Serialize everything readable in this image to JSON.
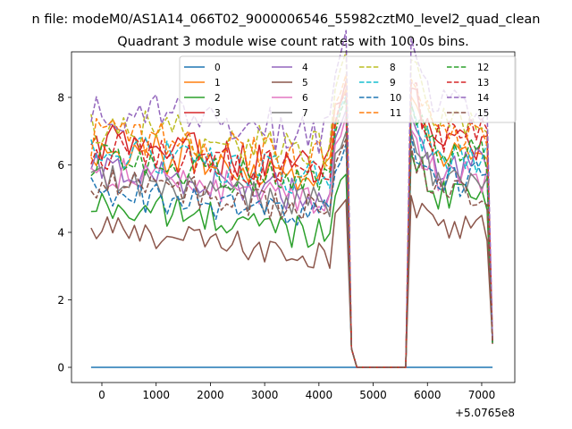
{
  "chart_data": {
    "type": "line",
    "suptitle": "n file: modeM0/AS1A14_066T02_9000006546_55982cztM0_level2_quad_clean",
    "title": "Quadrant 3 module wise count rates with 100.0s bins.",
    "xlabel": "",
    "ylabel": "",
    "x_offset_label": "+5.0765e8",
    "xlim": [
      -560,
      7610
    ],
    "ylim": [
      -0.45,
      9.35
    ],
    "xticks": [
      0,
      1000,
      2000,
      3000,
      4000,
      5000,
      6000,
      7000
    ],
    "yticks": [
      0,
      2,
      4,
      6,
      8
    ],
    "legend": {
      "location": "upper center",
      "columns": 4
    },
    "x_start": -200,
    "x_step": 100,
    "gap": {
      "drop_start": 4500,
      "zero_from": 4700,
      "zero_to": 5600,
      "rise_end": 5700
    },
    "series": [
      {
        "name": "0",
        "color": "#1f77b4",
        "dashed": false,
        "level": 0,
        "end": 0,
        "amp": 0
      },
      {
        "name": "1",
        "color": "#ff7f0e",
        "dashed": false,
        "level": 6.1,
        "end": 6.4,
        "amp": 0.6
      },
      {
        "name": "2",
        "color": "#2ca02c",
        "dashed": false,
        "level": 4.4,
        "end": 5.2,
        "amp": 0.55
      },
      {
        "name": "3",
        "color": "#d62728",
        "dashed": false,
        "level": 6.3,
        "end": 6.6,
        "amp": 0.6
      },
      {
        "name": "4",
        "color": "#9467bd",
        "dashed": false,
        "level": 5.5,
        "end": 6.0,
        "amp": 0.55
      },
      {
        "name": "5",
        "color": "#8c564b",
        "dashed": false,
        "level": 3.7,
        "end": 4.1,
        "amp": 0.45
      },
      {
        "name": "6",
        "color": "#e377c2",
        "dashed": false,
        "level": 5.4,
        "end": 5.6,
        "amp": 0.5
      },
      {
        "name": "7",
        "color": "#7f7f7f",
        "dashed": false,
        "level": 5.2,
        "end": 5.6,
        "amp": 0.5
      },
      {
        "name": "8",
        "color": "#bcbd22",
        "dashed": true,
        "level": 6.8,
        "end": 7.3,
        "amp": 0.6
      },
      {
        "name": "9",
        "color": "#17becf",
        "dashed": true,
        "level": 6.0,
        "end": 6.2,
        "amp": 0.55
      },
      {
        "name": "10",
        "color": "#1f77b4",
        "dashed": true,
        "level": 4.8,
        "end": 5.6,
        "amp": 0.55
      },
      {
        "name": "11",
        "color": "#ff7f0e",
        "dashed": true,
        "level": 6.5,
        "end": 6.8,
        "amp": 0.6
      },
      {
        "name": "12",
        "color": "#2ca02c",
        "dashed": true,
        "level": 5.8,
        "end": 6.3,
        "amp": 0.55
      },
      {
        "name": "13",
        "color": "#d62728",
        "dashed": true,
        "level": 6.1,
        "end": 6.8,
        "amp": 0.6
      },
      {
        "name": "14",
        "color": "#9467bd",
        "dashed": true,
        "level": 7.3,
        "end": 7.8,
        "amp": 0.65
      },
      {
        "name": "15",
        "color": "#8c564b",
        "dashed": true,
        "level": 5.1,
        "end": 5.2,
        "amp": 0.5
      }
    ]
  }
}
